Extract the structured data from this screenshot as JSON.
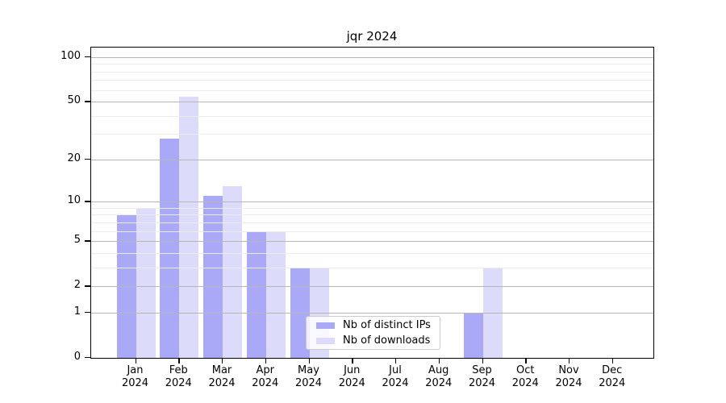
{
  "chart_data": {
    "type": "bar",
    "title": "jqr 2024",
    "categories": [
      "Jan 2024",
      "Feb 2024",
      "Mar 2024",
      "Apr 2024",
      "May 2024",
      "Jun 2024",
      "Jul 2024",
      "Aug 2024",
      "Sep 2024",
      "Oct 2024",
      "Nov 2024",
      "Dec 2024"
    ],
    "series": [
      {
        "name": "Nb of distinct IPs",
        "color": "#a9a9f8",
        "values": [
          8,
          28,
          11,
          6,
          3,
          0,
          0,
          0,
          1,
          0,
          0,
          0
        ]
      },
      {
        "name": "Nb of downloads",
        "color": "#dcdcfa",
        "values": [
          9,
          54,
          13,
          6,
          3,
          0,
          0,
          0,
          3,
          0,
          0,
          0
        ]
      }
    ],
    "yscale": "log1p",
    "ylim": [
      0,
      116
    ],
    "yticks": [
      0,
      1,
      2,
      5,
      10,
      20,
      50,
      100
    ],
    "minor_yticks": [
      3,
      4,
      6,
      7,
      8,
      9,
      30,
      40,
      60,
      70,
      80,
      90
    ],
    "grid": "on",
    "legend_position": "lower center",
    "colors": {
      "major_grid": "#b6b6b6",
      "minor_grid": "#ececec",
      "spine": "#000000",
      "background": "#ffffff"
    }
  }
}
